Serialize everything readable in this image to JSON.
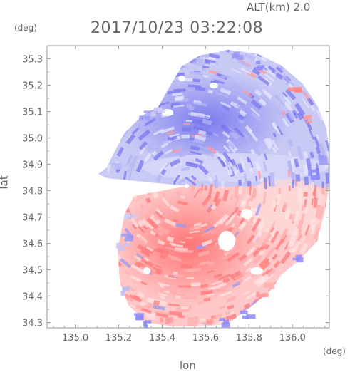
{
  "chart_data": {
    "type": "heatmap",
    "title": "2017/10/23 03:22:08",
    "annotation": "ALT(km) 2.0",
    "xlabel": "lon",
    "ylabel": "lat",
    "x_unit": "(deg)",
    "y_unit": "(deg)",
    "xlim": [
      134.87,
      136.17
    ],
    "ylim": [
      34.28,
      35.35
    ],
    "x_ticks": [
      "135.0",
      "135.2",
      "135.4",
      "135.6",
      "135.8",
      "136.0"
    ],
    "x_tick_values": [
      135.0,
      135.2,
      135.4,
      135.6,
      135.8,
      136.0
    ],
    "y_ticks": [
      "34.3",
      "34.4",
      "34.5",
      "34.6",
      "34.7",
      "34.8",
      "34.9",
      "35.0",
      "35.1",
      "35.2",
      "35.3"
    ],
    "y_tick_values": [
      34.3,
      34.4,
      34.5,
      34.6,
      34.7,
      34.8,
      34.9,
      35.0,
      35.1,
      35.2,
      35.3
    ],
    "radar_center": [
      135.52,
      34.81
    ],
    "colors": {
      "positive": "#ff8888",
      "negative": "#8888ff",
      "axis": "#999999"
    }
  }
}
